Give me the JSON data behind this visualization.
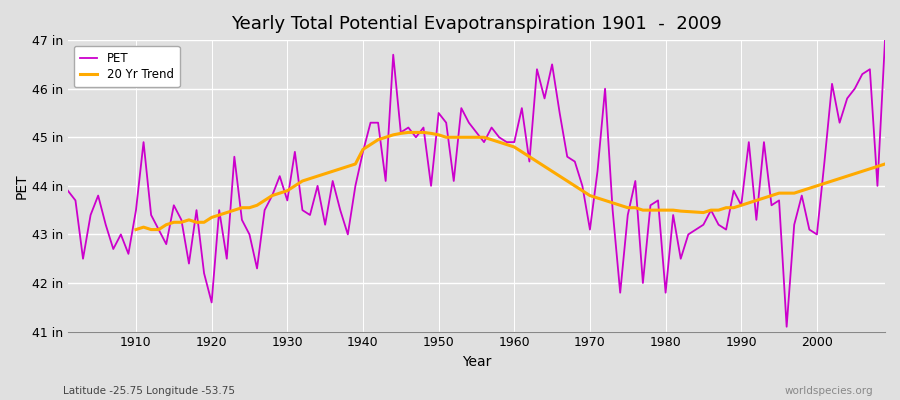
{
  "title": "Yearly Total Potential Evapotranspiration 1901  -  2009",
  "xlabel": "Year",
  "ylabel": "PET",
  "subtitle_left": "Latitude -25.75 Longitude -53.75",
  "subtitle_right": "worldspecies.org",
  "ylim": [
    41,
    47
  ],
  "xlim": [
    1901,
    2009
  ],
  "yticks": [
    41,
    42,
    43,
    44,
    45,
    46,
    47
  ],
  "ytick_labels": [
    "41 in",
    "42 in",
    "43 in",
    "44 in",
    "45 in",
    "46 in",
    "47 in"
  ],
  "xticks": [
    1910,
    1920,
    1930,
    1940,
    1950,
    1960,
    1970,
    1980,
    1990,
    2000
  ],
  "pet_color": "#cc00cc",
  "trend_color": "#ffaa00",
  "bg_color": "#e0e0e0",
  "grid_color": "#ffffff",
  "years": [
    1901,
    1902,
    1903,
    1904,
    1905,
    1906,
    1907,
    1908,
    1909,
    1910,
    1911,
    1912,
    1913,
    1914,
    1915,
    1916,
    1917,
    1918,
    1919,
    1920,
    1921,
    1922,
    1923,
    1924,
    1925,
    1926,
    1927,
    1928,
    1929,
    1930,
    1931,
    1932,
    1933,
    1934,
    1935,
    1936,
    1937,
    1938,
    1939,
    1940,
    1941,
    1942,
    1943,
    1944,
    1945,
    1946,
    1947,
    1948,
    1949,
    1950,
    1951,
    1952,
    1953,
    1954,
    1955,
    1956,
    1957,
    1958,
    1959,
    1960,
    1961,
    1962,
    1963,
    1964,
    1965,
    1966,
    1967,
    1968,
    1969,
    1970,
    1971,
    1972,
    1973,
    1974,
    1975,
    1976,
    1977,
    1978,
    1979,
    1980,
    1981,
    1982,
    1983,
    1984,
    1985,
    1986,
    1987,
    1988,
    1989,
    1990,
    1991,
    1992,
    1993,
    1994,
    1995,
    1996,
    1997,
    1998,
    1999,
    2000,
    2001,
    2002,
    2003,
    2004,
    2005,
    2006,
    2007,
    2008,
    2009
  ],
  "pet_values": [
    43.9,
    43.7,
    42.5,
    43.4,
    43.8,
    43.2,
    42.7,
    43.0,
    42.6,
    43.5,
    44.9,
    43.4,
    43.1,
    42.8,
    43.6,
    43.3,
    42.4,
    43.5,
    42.2,
    41.6,
    43.5,
    42.5,
    44.6,
    43.3,
    43.0,
    42.3,
    43.5,
    43.8,
    44.2,
    43.7,
    44.7,
    43.5,
    43.4,
    44.0,
    43.2,
    44.1,
    43.5,
    43.0,
    44.0,
    44.7,
    45.3,
    45.3,
    44.1,
    46.7,
    45.1,
    45.2,
    45.0,
    45.2,
    44.0,
    45.5,
    45.3,
    44.1,
    45.6,
    45.3,
    45.1,
    44.9,
    45.2,
    45.0,
    44.9,
    44.9,
    45.6,
    44.5,
    46.4,
    45.8,
    46.5,
    45.5,
    44.6,
    44.5,
    44.0,
    43.1,
    44.3,
    46.0,
    43.5,
    41.8,
    43.4,
    44.1,
    42.0,
    43.6,
    43.7,
    41.8,
    43.4,
    42.5,
    43.0,
    43.1,
    43.2,
    43.5,
    43.2,
    43.1,
    43.9,
    43.6,
    44.9,
    43.3,
    44.9,
    43.6,
    43.7,
    41.1,
    43.2,
    43.8,
    43.1,
    43.0,
    44.5,
    46.1,
    45.3,
    45.8,
    46.0,
    46.3,
    46.4,
    44.0,
    47.0
  ],
  "trend_years": [
    1910,
    1911,
    1912,
    1913,
    1914,
    1915,
    1916,
    1917,
    1918,
    1919,
    1920,
    1921,
    1922,
    1923,
    1924,
    1925,
    1926,
    1927,
    1928,
    1929,
    1930,
    1931,
    1932,
    1933,
    1934,
    1935,
    1936,
    1937,
    1938,
    1939,
    1940,
    1941,
    1942,
    1943,
    1944,
    1945,
    1946,
    1947,
    1948,
    1949,
    1950,
    1951,
    1952,
    1953,
    1954,
    1955,
    1956,
    1957,
    1958,
    1959,
    1960,
    1961,
    1962,
    1963,
    1964,
    1965,
    1966,
    1967,
    1968,
    1969,
    1970,
    1971,
    1972,
    1973,
    1974,
    1975,
    1976,
    1977,
    1978,
    1979,
    1980,
    1981,
    1982,
    1983,
    1984,
    1985,
    1986,
    1987,
    1988,
    1989,
    1990,
    1991,
    1992,
    1993,
    1994,
    1995,
    1996,
    1997,
    1998,
    1999,
    2000,
    2001,
    2002,
    2003,
    2004,
    2005,
    2006,
    2007,
    2008,
    2009
  ],
  "trend_values": [
    43.1,
    43.15,
    43.1,
    43.1,
    43.2,
    43.25,
    43.25,
    43.3,
    43.25,
    43.25,
    43.35,
    43.4,
    43.45,
    43.5,
    43.55,
    43.55,
    43.6,
    43.7,
    43.8,
    43.85,
    43.9,
    44.0,
    44.1,
    44.15,
    44.2,
    44.25,
    44.3,
    44.35,
    44.4,
    44.45,
    44.75,
    44.85,
    44.95,
    45.0,
    45.05,
    45.08,
    45.1,
    45.1,
    45.1,
    45.08,
    45.05,
    45.0,
    45.0,
    45.0,
    45.0,
    45.0,
    45.0,
    44.95,
    44.9,
    44.85,
    44.8,
    44.7,
    44.6,
    44.5,
    44.4,
    44.3,
    44.2,
    44.1,
    44.0,
    43.9,
    43.8,
    43.75,
    43.7,
    43.65,
    43.6,
    43.55,
    43.55,
    43.5,
    43.5,
    43.5,
    43.5,
    43.5,
    43.48,
    43.47,
    43.46,
    43.45,
    43.5,
    43.5,
    43.55,
    43.55,
    43.6,
    43.65,
    43.7,
    43.75,
    43.8,
    43.85,
    43.85,
    43.85,
    43.9,
    43.95,
    44.0,
    44.05,
    44.1,
    44.15,
    44.2,
    44.25,
    44.3,
    44.35,
    44.4,
    44.45
  ]
}
